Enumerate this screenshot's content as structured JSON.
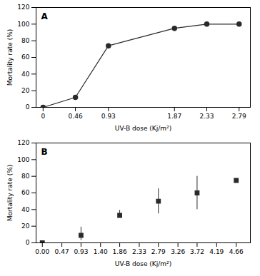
{
  "chart_data": [
    {
      "type": "line",
      "title": "A",
      "x": [
        0,
        0.46,
        0.93,
        1.87,
        2.33,
        2.79
      ],
      "values": [
        0,
        12,
        74,
        95,
        100,
        100
      ],
      "xlabel": "UV-B dose (Kj/m²)",
      "ylabel": "Mortality rate (%)",
      "xlim": [
        -0.1,
        2.95
      ],
      "xticks": [
        0,
        0.46,
        0.93,
        1.87,
        2.33,
        2.79
      ],
      "ylim": [
        0,
        120
      ],
      "yticks": [
        0,
        20,
        40,
        60,
        80,
        100,
        120
      ],
      "color": "#2a2a2a",
      "marker": "circle",
      "grid": false
    },
    {
      "type": "scatter",
      "title": "B",
      "x": [
        0.0,
        0.93,
        1.86,
        2.79,
        3.72,
        4.66
      ],
      "values": [
        0,
        9,
        33,
        50,
        60,
        75
      ],
      "error_low": [
        0,
        6,
        3,
        15,
        20,
        0
      ],
      "error_high": [
        0,
        10,
        6,
        15,
        20,
        0
      ],
      "xlabel": "UV-B dose (Kj/m²)",
      "ylabel": "Mortality rate (%)",
      "xlim": [
        -0.15,
        5.0
      ],
      "xticks": [
        {
          "value": 0,
          "label": "0.00"
        },
        0.47,
        0.93,
        {
          "value": 1.4,
          "label": "1.40"
        },
        1.86,
        2.33,
        2.79,
        3.26,
        3.72,
        4.19,
        4.66
      ],
      "ylim": [
        0,
        120
      ],
      "yticks": [
        0,
        20,
        40,
        60,
        80,
        100,
        120
      ],
      "color": "#2a2a2a",
      "marker": "square",
      "grid": false
    }
  ]
}
